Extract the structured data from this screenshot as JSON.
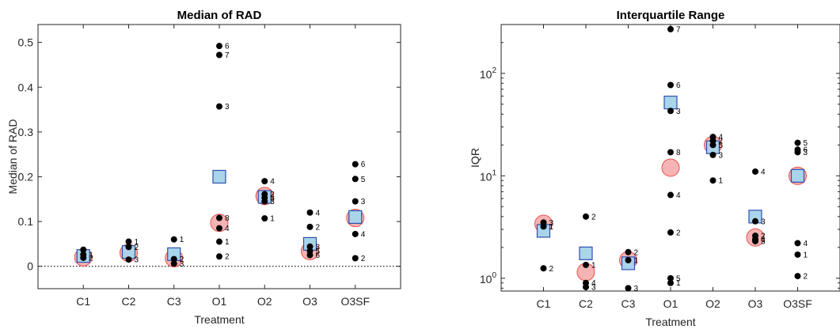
{
  "chart_data": [
    {
      "type": "scatter",
      "title": "Median of RAD",
      "xlabel": "Treatment",
      "ylabel": "Median of RAD",
      "categories": [
        "C1",
        "C2",
        "C3",
        "O1",
        "O2",
        "O3",
        "O3SF"
      ],
      "yscale": "linear",
      "ylim": [
        -0.05,
        0.54
      ],
      "yticks": [
        0,
        0.1,
        0.2,
        0.3,
        0.4,
        0.5
      ],
      "ytick_labels": [
        "0",
        "0.1",
        "0.2",
        "0.3",
        "0.4",
        "0.5"
      ],
      "zero_line": "dotted",
      "series": [
        {
          "marker": "dot",
          "color": "#000000",
          "points": [
            {
              "cat": "C1",
              "y": 0.037,
              "label": ""
            },
            {
              "cat": "C1",
              "y": 0.026,
              "label": "1"
            },
            {
              "cat": "C1",
              "y": 0.019,
              "label": "2"
            },
            {
              "cat": "C2",
              "y": 0.055,
              "label": "1"
            },
            {
              "cat": "C2",
              "y": 0.043,
              "label": "2"
            },
            {
              "cat": "C2",
              "y": 0.015,
              "label": "3"
            },
            {
              "cat": "C3",
              "y": 0.06,
              "label": "1"
            },
            {
              "cat": "C3",
              "y": 0.016,
              "label": "2"
            },
            {
              "cat": "C3",
              "y": 0.006,
              "label": "3"
            },
            {
              "cat": "O1",
              "y": 0.492,
              "label": "6"
            },
            {
              "cat": "O1",
              "y": 0.472,
              "label": "7"
            },
            {
              "cat": "O1",
              "y": 0.357,
              "label": "3"
            },
            {
              "cat": "O1",
              "y": 0.108,
              "label": "8"
            },
            {
              "cat": "O1",
              "y": 0.085,
              "label": "4"
            },
            {
              "cat": "O1",
              "y": 0.055,
              "label": "1"
            },
            {
              "cat": "O1",
              "y": 0.022,
              "label": "2"
            },
            {
              "cat": "O2",
              "y": 0.19,
              "label": "4"
            },
            {
              "cat": "O2",
              "y": 0.161,
              "label": "2"
            },
            {
              "cat": "O2",
              "y": 0.153,
              "label": "5"
            },
            {
              "cat": "O2",
              "y": 0.145,
              "label": "3"
            },
            {
              "cat": "O2",
              "y": 0.107,
              "label": "1"
            },
            {
              "cat": "O3",
              "y": 0.12,
              "label": "4"
            },
            {
              "cat": "O3",
              "y": 0.088,
              "label": "2"
            },
            {
              "cat": "O3",
              "y": 0.044,
              "label": "3"
            },
            {
              "cat": "O3",
              "y": 0.034,
              "label": "5"
            },
            {
              "cat": "O3",
              "y": 0.025,
              "label": "6"
            },
            {
              "cat": "O3SF",
              "y": 0.228,
              "label": "6"
            },
            {
              "cat": "O3SF",
              "y": 0.195,
              "label": "5"
            },
            {
              "cat": "O3SF",
              "y": 0.145,
              "label": "3"
            },
            {
              "cat": "O3SF",
              "y": 0.072,
              "label": "4"
            },
            {
              "cat": "O3SF",
              "y": 0.018,
              "label": "2"
            }
          ]
        },
        {
          "marker": "circle",
          "color": "#f4a6a6",
          "points": [
            {
              "cat": "C1",
              "y": 0.02
            },
            {
              "cat": "C2",
              "y": 0.03
            },
            {
              "cat": "C3",
              "y": 0.018
            },
            {
              "cat": "O1",
              "y": 0.097
            },
            {
              "cat": "O2",
              "y": 0.157
            },
            {
              "cat": "O3",
              "y": 0.034
            },
            {
              "cat": "O3SF",
              "y": 0.108
            }
          ]
        },
        {
          "marker": "square",
          "color": "#a9d4ea",
          "points": [
            {
              "cat": "C1",
              "y": 0.023
            },
            {
              "cat": "C2",
              "y": 0.032
            },
            {
              "cat": "C3",
              "y": 0.027
            },
            {
              "cat": "O1",
              "y": 0.2
            },
            {
              "cat": "O2",
              "y": 0.155
            },
            {
              "cat": "O3",
              "y": 0.05
            },
            {
              "cat": "O3SF",
              "y": 0.11
            }
          ]
        }
      ]
    },
    {
      "type": "scatter",
      "title": "Interquartile Range",
      "xlabel": "Treatment",
      "ylabel": "IQR",
      "categories": [
        "C1",
        "C2",
        "C3",
        "O1",
        "O2",
        "O3",
        "O3SF"
      ],
      "yscale": "log",
      "ylim": [
        0.75,
        300
      ],
      "yticks": [
        1,
        10,
        100
      ],
      "ytick_labels": [
        {
          "base": "10",
          "exp": "0"
        },
        {
          "base": "10",
          "exp": "1"
        },
        {
          "base": "10",
          "exp": "2"
        }
      ],
      "series": [
        {
          "marker": "dot",
          "color": "#000000",
          "points": [
            {
              "cat": "C1",
              "y": 3.5,
              "label": "3"
            },
            {
              "cat": "C1",
              "y": 3.2,
              "label": "1"
            },
            {
              "cat": "C1",
              "y": 1.25,
              "label": "2"
            },
            {
              "cat": "C2",
              "y": 4.0,
              "label": "2"
            },
            {
              "cat": "C2",
              "y": 1.35,
              "label": "1"
            },
            {
              "cat": "C2",
              "y": 0.9,
              "label": "4"
            },
            {
              "cat": "C2",
              "y": 0.82,
              "label": "3"
            },
            {
              "cat": "C3",
              "y": 1.8,
              "label": "2"
            },
            {
              "cat": "C3",
              "y": 1.5,
              "label": "1"
            },
            {
              "cat": "C3",
              "y": 0.8,
              "label": "3"
            },
            {
              "cat": "O1",
              "y": 270,
              "label": "7"
            },
            {
              "cat": "O1",
              "y": 77,
              "label": "6"
            },
            {
              "cat": "O1",
              "y": 43,
              "label": "3"
            },
            {
              "cat": "O1",
              "y": 17,
              "label": "8"
            },
            {
              "cat": "O1",
              "y": 6.5,
              "label": "4"
            },
            {
              "cat": "O1",
              "y": 2.8,
              "label": "2"
            },
            {
              "cat": "O1",
              "y": 1.0,
              "label": "5"
            },
            {
              "cat": "O1",
              "y": 0.9,
              "label": "1"
            },
            {
              "cat": "O2",
              "y": 24,
              "label": "4"
            },
            {
              "cat": "O2",
              "y": 22,
              "label": "2"
            },
            {
              "cat": "O2",
              "y": 20,
              "label": "5"
            },
            {
              "cat": "O2",
              "y": 16,
              "label": "3"
            },
            {
              "cat": "O2",
              "y": 9,
              "label": "1"
            },
            {
              "cat": "O3",
              "y": 11,
              "label": "4"
            },
            {
              "cat": "O3",
              "y": 3.6,
              "label": "3"
            },
            {
              "cat": "O3",
              "y": 2.6,
              "label": "2"
            },
            {
              "cat": "O3",
              "y": 2.4,
              "label": "6"
            },
            {
              "cat": "O3",
              "y": 2.3,
              "label": "5"
            },
            {
              "cat": "O3SF",
              "y": 21,
              "label": "5"
            },
            {
              "cat": "O3SF",
              "y": 18,
              "label": "6"
            },
            {
              "cat": "O3SF",
              "y": 17,
              "label": "3"
            },
            {
              "cat": "O3SF",
              "y": 2.2,
              "label": "4"
            },
            {
              "cat": "O3SF",
              "y": 1.7,
              "label": "1"
            },
            {
              "cat": "O3SF",
              "y": 1.05,
              "label": "2"
            }
          ]
        },
        {
          "marker": "circle",
          "color": "#f4a6a6",
          "points": [
            {
              "cat": "C1",
              "y": 3.4
            },
            {
              "cat": "C2",
              "y": 1.15
            },
            {
              "cat": "C3",
              "y": 1.5
            },
            {
              "cat": "O1",
              "y": 12
            },
            {
              "cat": "O2",
              "y": 20
            },
            {
              "cat": "O3",
              "y": 2.5
            },
            {
              "cat": "O3SF",
              "y": 10
            }
          ]
        },
        {
          "marker": "square",
          "color": "#a9d4ea",
          "points": [
            {
              "cat": "C1",
              "y": 2.9
            },
            {
              "cat": "C2",
              "y": 1.75
            },
            {
              "cat": "C3",
              "y": 1.4
            },
            {
              "cat": "O1",
              "y": 52
            },
            {
              "cat": "O2",
              "y": 19
            },
            {
              "cat": "O3",
              "y": 4.0
            },
            {
              "cat": "O3SF",
              "y": 10
            }
          ]
        }
      ]
    }
  ]
}
